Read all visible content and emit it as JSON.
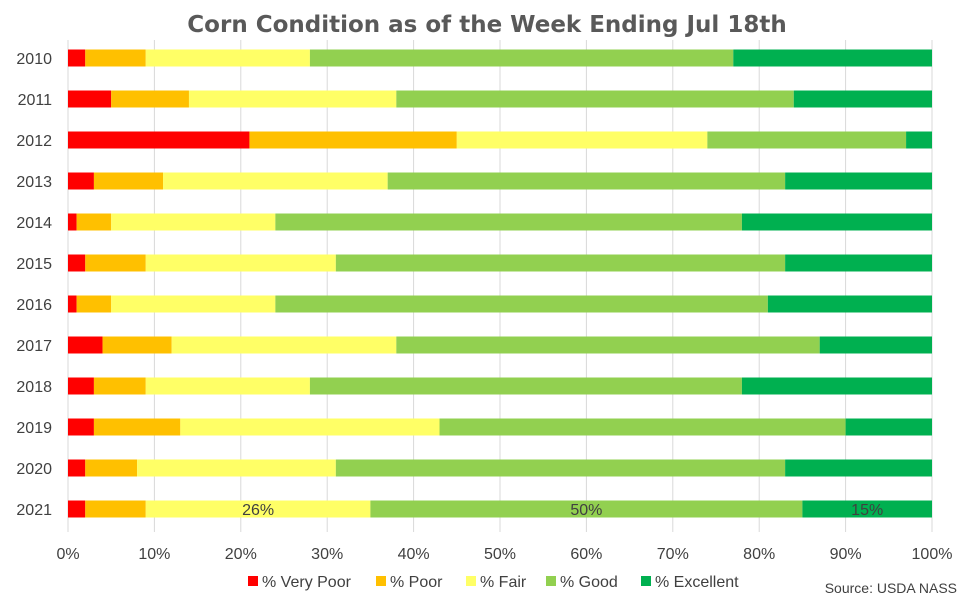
{
  "chart_data": {
    "type": "bar",
    "orientation": "horizontal",
    "stacked": true,
    "title": "Corn Condition as of the Week Ending Jul 18th",
    "categories": [
      "2010",
      "2011",
      "2012",
      "2013",
      "2014",
      "2015",
      "2016",
      "2017",
      "2018",
      "2019",
      "2020",
      "2021"
    ],
    "series": [
      {
        "name": "% Very Poor",
        "color": "#ff0000",
        "values": [
          2,
          5,
          21,
          3,
          1,
          2,
          1,
          4,
          3,
          3,
          2,
          2
        ]
      },
      {
        "name": "% Poor",
        "color": "#ffc000",
        "values": [
          7,
          9,
          24,
          8,
          4,
          7,
          4,
          8,
          6,
          10,
          6,
          7
        ]
      },
      {
        "name": "% Fair",
        "color": "#ffff66",
        "values": [
          19,
          24,
          29,
          26,
          19,
          22,
          19,
          26,
          19,
          30,
          23,
          26
        ]
      },
      {
        "name": "% Good",
        "color": "#92d050",
        "values": [
          49,
          46,
          23,
          46,
          54,
          52,
          57,
          49,
          50,
          47,
          52,
          50
        ]
      },
      {
        "name": "% Excellent",
        "color": "#00b050",
        "values": [
          23,
          16,
          3,
          17,
          22,
          17,
          19,
          13,
          22,
          10,
          17,
          15
        ]
      }
    ],
    "xaxis": {
      "min": 0,
      "max": 100,
      "step": 10,
      "tick_labels": [
        "0%",
        "10%",
        "20%",
        "30%",
        "40%",
        "50%",
        "60%",
        "70%",
        "80%",
        "90%",
        "100%"
      ]
    },
    "data_labels": [
      {
        "category": "2021",
        "series": "% Fair",
        "text": "26%"
      },
      {
        "category": "2021",
        "series": "% Good",
        "text": "50%"
      },
      {
        "category": "2021",
        "series": "% Excellent",
        "text": "15%"
      }
    ],
    "grid": true,
    "legend": "bottom",
    "source": "Source: USDA NASS"
  }
}
